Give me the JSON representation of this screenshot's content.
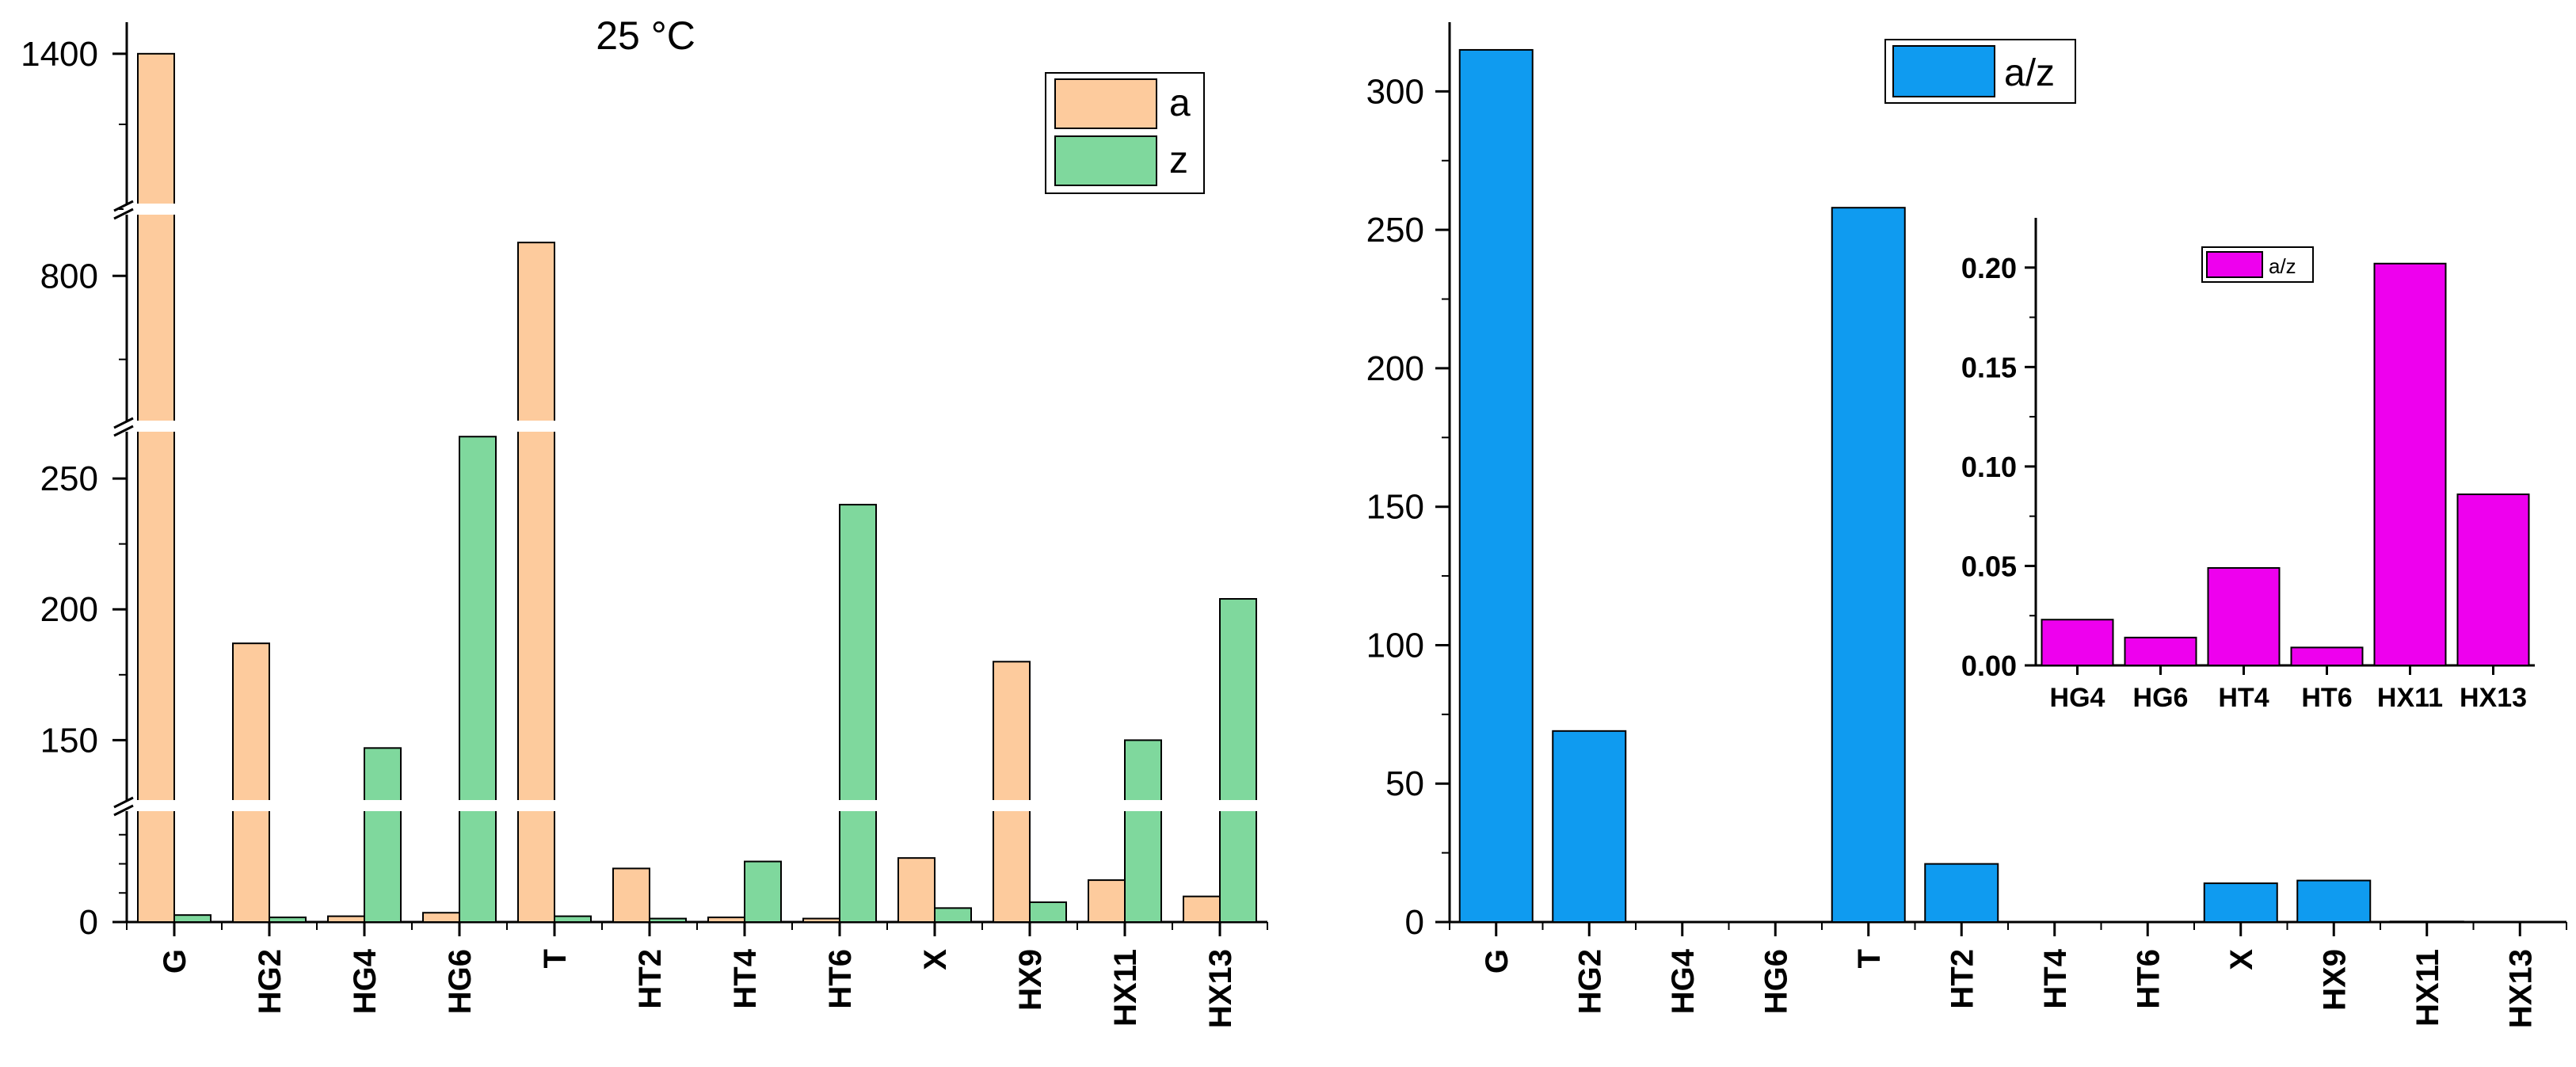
{
  "chart_data": [
    {
      "type": "bar",
      "title": "25 °C",
      "xlabel": "",
      "ylabel": "",
      "categories": [
        "G",
        "HG2",
        "HG4",
        "HG6",
        "T",
        "HT2",
        "HT4",
        "HT6",
        "X",
        "HX9",
        "HX11",
        "HX13"
      ],
      "series": [
        {
          "name": "a",
          "color": "#FDCB9D",
          "values": [
            1400,
            187,
            5,
            8,
            840,
            46,
            4,
            3,
            55,
            180,
            36,
            22
          ]
        },
        {
          "name": "z",
          "color": "#7FD89D",
          "values": [
            6,
            4,
            147,
            266,
            5,
            3,
            52,
            240,
            12,
            17,
            150,
            204
          ]
        }
      ],
      "axis_breaks": [
        [
          260,
          620
        ],
        [
          880,
          1180
        ]
      ],
      "y_segments": [
        {
          "from": 0,
          "to": 100,
          "ticks": [
            0
          ]
        },
        {
          "from": 125,
          "to": 270,
          "ticks": [
            150,
            200,
            250
          ]
        },
        {
          "from": 620,
          "to": 880,
          "ticks": [
            800
          ]
        },
        {
          "from": 1180,
          "to": 1420,
          "ticks": [
            1400
          ]
        }
      ],
      "legend_placement": "top-right",
      "grid": false
    },
    {
      "type": "bar",
      "title": "",
      "xlabel": "",
      "ylabel": "",
      "categories": [
        "G",
        "HG2",
        "HG4",
        "HG6",
        "T",
        "HT2",
        "HT4",
        "HT6",
        "X",
        "HX9",
        "HX11",
        "HX13"
      ],
      "series": [
        {
          "name": "a/z",
          "color": "#0F9BF0",
          "values": [
            315,
            69,
            0.023,
            0.014,
            258,
            21,
            0.049,
            0.009,
            14,
            15,
            0.202,
            0.086
          ]
        }
      ],
      "ylim": [
        0,
        325
      ],
      "yticks": [
        0,
        50,
        100,
        150,
        200,
        250,
        300
      ],
      "legend_placement": "top-left",
      "grid": false
    },
    {
      "type": "bar",
      "title": "",
      "xlabel": "",
      "ylabel": "",
      "inset": true,
      "categories": [
        "HG4",
        "HG6",
        "HT4",
        "HT6",
        "HX11",
        "HX13"
      ],
      "series": [
        {
          "name": "a/z",
          "color": "#EE00EE",
          "values": [
            0.023,
            0.014,
            0.049,
            0.009,
            0.202,
            0.086
          ]
        }
      ],
      "ylim": [
        0,
        0.225
      ],
      "yticks": [
        "0.00",
        "0.05",
        "0.10",
        "0.15",
        "0.20"
      ],
      "legend_placement": "top-left",
      "grid": false
    }
  ]
}
